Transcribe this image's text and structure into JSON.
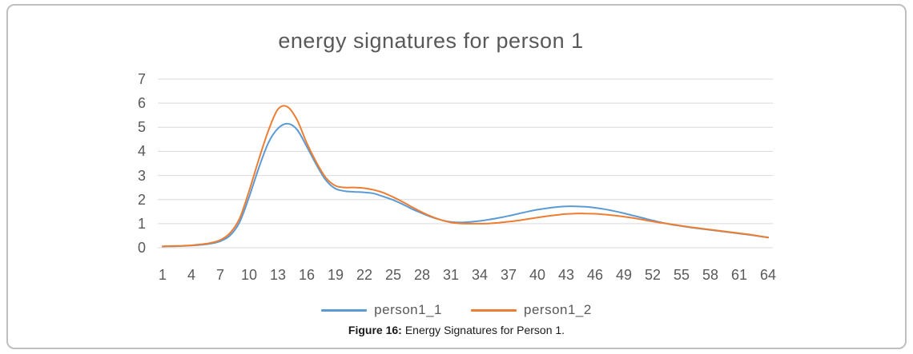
{
  "figure": {
    "caption_label": "Figure 16:",
    "caption_text": "Energy Signatures for Person 1."
  },
  "chart_data": {
    "type": "line",
    "title": "energy signatures for person 1",
    "xlabel": "",
    "ylabel": "",
    "ylim": [
      0,
      7
    ],
    "y_ticks": [
      0,
      1,
      2,
      3,
      4,
      5,
      6,
      7
    ],
    "x_ticks": [
      1,
      4,
      7,
      10,
      13,
      16,
      19,
      22,
      25,
      28,
      31,
      34,
      37,
      40,
      43,
      46,
      49,
      52,
      55,
      58,
      61,
      64
    ],
    "x": [
      1,
      2,
      3,
      4,
      5,
      6,
      7,
      8,
      9,
      10,
      11,
      12,
      13,
      14,
      15,
      16,
      17,
      18,
      19,
      20,
      21,
      22,
      23,
      24,
      25,
      26,
      27,
      28,
      29,
      30,
      31,
      32,
      33,
      34,
      35,
      36,
      37,
      38,
      39,
      40,
      41,
      42,
      43,
      44,
      45,
      46,
      47,
      48,
      49,
      50,
      51,
      52,
      53,
      54,
      55,
      56,
      57,
      58,
      59,
      60,
      61,
      62,
      63,
      64
    ],
    "grid": "horizontal",
    "legend_position": "bottom",
    "gridline_color": "#d9d9d9",
    "axis_label_color": "#595959",
    "series": [
      {
        "name": "person1_1",
        "color": "#5B9BD5",
        "values": [
          0.05,
          0.06,
          0.07,
          0.09,
          0.12,
          0.17,
          0.27,
          0.5,
          1.05,
          2.1,
          3.3,
          4.35,
          4.95,
          5.15,
          4.9,
          4.2,
          3.45,
          2.8,
          2.45,
          2.35,
          2.32,
          2.3,
          2.25,
          2.12,
          1.98,
          1.8,
          1.6,
          1.43,
          1.27,
          1.15,
          1.07,
          1.05,
          1.07,
          1.11,
          1.17,
          1.24,
          1.32,
          1.41,
          1.5,
          1.58,
          1.64,
          1.69,
          1.72,
          1.72,
          1.7,
          1.66,
          1.6,
          1.52,
          1.43,
          1.33,
          1.23,
          1.13,
          1.04,
          0.96,
          0.9,
          0.84,
          0.79,
          0.74,
          0.69,
          0.64,
          0.59,
          0.54,
          0.48,
          0.43
        ]
      },
      {
        "name": "person1_2",
        "color": "#ED7D31",
        "values": [
          0.06,
          0.07,
          0.08,
          0.1,
          0.14,
          0.2,
          0.32,
          0.6,
          1.2,
          2.35,
          3.65,
          4.85,
          5.75,
          5.85,
          5.3,
          4.35,
          3.55,
          2.9,
          2.57,
          2.5,
          2.5,
          2.47,
          2.4,
          2.28,
          2.1,
          1.9,
          1.68,
          1.47,
          1.29,
          1.15,
          1.05,
          1.01,
          1.0,
          1.0,
          1.01,
          1.04,
          1.08,
          1.13,
          1.19,
          1.25,
          1.31,
          1.36,
          1.4,
          1.42,
          1.42,
          1.41,
          1.38,
          1.34,
          1.29,
          1.23,
          1.16,
          1.09,
          1.03,
          0.97,
          0.91,
          0.85,
          0.8,
          0.75,
          0.7,
          0.65,
          0.6,
          0.55,
          0.49,
          0.42
        ]
      }
    ]
  }
}
